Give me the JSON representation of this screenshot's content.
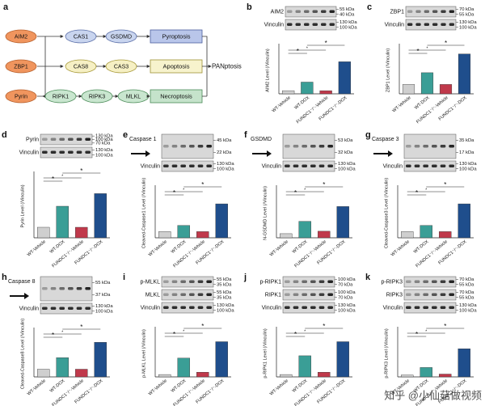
{
  "diagram": {
    "letter": "a",
    "sources": [
      "AIM2",
      "ZBP1",
      "Pyrin"
    ],
    "row1": [
      "CAS1",
      "GSDMD"
    ],
    "row2": [
      "CAS8",
      "CAS3"
    ],
    "row3": [
      "RIPK1",
      "RIPK3",
      "MLKL"
    ],
    "outcomes": [
      "Pyroptosis",
      "Apoptosis",
      "Necroptosis"
    ],
    "result": "PANptosis"
  },
  "groups": {
    "categories": [
      "WT-Vehicle",
      "WT-DOX",
      "FUNDC1⁻/⁻-Vehicle",
      "FUNDC1⁻/⁻-DOX"
    ],
    "colors": [
      "#cfcfcf",
      "#3a9e96",
      "#c0394b",
      "#1f4e8c"
    ]
  },
  "panels": [
    {
      "letter": "b",
      "blots": [
        {
          "label": "AIM2",
          "kda": [
            "55 kDa",
            "40 kDa"
          ]
        },
        {
          "label": "Vinculin",
          "kda": [
            "130 kDa",
            "100 kDa"
          ]
        }
      ],
      "chart": {
        "type": "bar",
        "ylabel": "AIM2 Level (/Vinculin)",
        "values": [
          0.08,
          0.3,
          0.08,
          0.82
        ],
        "ylim": [
          0,
          1.2
        ],
        "sig": [
          "*",
          "*",
          "*"
        ]
      }
    },
    {
      "letter": "c",
      "blots": [
        {
          "label": "ZBP1",
          "kda": [
            "70 kDa",
            "55 kDa"
          ]
        },
        {
          "label": "Vinculin",
          "kda": [
            "130 kDa",
            "100 kDa"
          ]
        }
      ],
      "chart": {
        "type": "bar",
        "ylabel": "ZBP1 Level (/Vinculin)",
        "values": [
          0.2,
          0.45,
          0.2,
          0.85
        ],
        "ylim": [
          0,
          1.0
        ],
        "sig": [
          "*",
          "*",
          "*"
        ]
      }
    },
    {
      "letter": "d",
      "blots": [
        {
          "label": "Pyrin",
          "kda": [
            "130 kDa",
            "100 kDa",
            "70 kDa"
          ]
        },
        {
          "label": "Vinculin",
          "kda": [
            "130 kDa",
            "100 kDa"
          ]
        }
      ],
      "chart": {
        "type": "bar",
        "ylabel": "Pyrin Level (/Vinculin)",
        "values": [
          0.25,
          0.75,
          0.25,
          1.05
        ],
        "ylim": [
          0,
          1.5
        ],
        "sig": [
          "*",
          "*",
          "*"
        ]
      }
    },
    {
      "letter": "e",
      "blots": [
        {
          "label": "Caspase 1",
          "kda": [
            "45 kDa",
            "22 kDa"
          ],
          "tall": true
        },
        {
          "label": "Vinculin",
          "kda": [
            "130 kDa",
            "100 kDa"
          ]
        }
      ],
      "chart": {
        "type": "bar",
        "ylabel": "Cleaved-Caspase1 Level (/Vinculin)",
        "values": [
          0.1,
          0.2,
          0.1,
          0.55
        ],
        "ylim": [
          0,
          0.8
        ],
        "sig": [
          "*",
          "*",
          "*"
        ]
      }
    },
    {
      "letter": "f",
      "blots": [
        {
          "label": "GSDMD",
          "kda": [
            "53 kDa",
            "32 kDa"
          ],
          "tall": true
        },
        {
          "label": "Vinculin",
          "kda": [
            "130 kDa",
            "100 kDa"
          ]
        }
      ],
      "chart": {
        "type": "bar",
        "ylabel": "N-GSDMD Level (/Vinculin)",
        "values": [
          0.05,
          0.2,
          0.08,
          0.38
        ],
        "ylim": [
          0,
          0.6
        ],
        "sig": [
          "*",
          "*",
          "*"
        ]
      }
    },
    {
      "letter": "g",
      "blots": [
        {
          "label": "Caspase 3",
          "kda": [
            "35 kDa",
            "17 kDa"
          ],
          "tall": true
        },
        {
          "label": "Vinculin",
          "kda": [
            "130 kDa",
            "100 kDa"
          ]
        }
      ],
      "chart": {
        "type": "bar",
        "ylabel": "Cleaved-Caspase3 Level (/Vinculin)",
        "values": [
          0.1,
          0.2,
          0.1,
          0.55
        ],
        "ylim": [
          0,
          0.8
        ],
        "sig": [
          "*",
          "*",
          "*"
        ]
      }
    },
    {
      "letter": "h",
      "blots": [
        {
          "label": "Caspase 8",
          "kda": [
            "55 kDa",
            "37 kDa"
          ],
          "tall": true
        },
        {
          "label": "Vinculin",
          "kda": [
            "130 kDa",
            "100 kDa"
          ]
        }
      ],
      "chart": {
        "type": "bar",
        "ylabel": "Cleaved-Caspase8 Level (/Vinculin)",
        "values": [
          0.1,
          0.25,
          0.1,
          0.45
        ],
        "ylim": [
          0,
          0.6
        ],
        "sig": [
          "*",
          "*",
          "*"
        ]
      }
    },
    {
      "letter": "i",
      "blots": [
        {
          "label": "p-MLKL",
          "kda": [
            "55 kDa",
            "35 kDa"
          ]
        },
        {
          "label": "MLKL",
          "kda": [
            "55 kDa",
            "35 kDa"
          ]
        },
        {
          "label": "Vinculin",
          "kda": [
            "130 kDa",
            "100 kDa"
          ]
        }
      ],
      "chart": {
        "type": "bar",
        "ylabel": "p-MLKL Level (/Vinculin)",
        "values": [
          0.05,
          0.4,
          0.1,
          0.75
        ],
        "ylim": [
          0,
          1.0
        ],
        "sig": [
          "*",
          "*",
          "*"
        ]
      }
    },
    {
      "letter": "j",
      "blots": [
        {
          "label": "p-RIPK1",
          "kda": [
            "100 kDa",
            "70 kDa"
          ]
        },
        {
          "label": "RIPK1",
          "kda": [
            "100 kDa",
            "70 kDa"
          ]
        },
        {
          "label": "Vinculin",
          "kda": [
            "130 kDa",
            "100 kDa"
          ]
        }
      ],
      "chart": {
        "type": "bar",
        "ylabel": "p-RIPK1 Level (/Vinculin)",
        "values": [
          0.05,
          0.45,
          0.1,
          0.75
        ],
        "ylim": [
          0,
          1.0
        ],
        "sig": [
          "*",
          "*",
          "*"
        ]
      }
    },
    {
      "letter": "k",
      "blots": [
        {
          "label": "p-RIPK3",
          "kda": [
            "70 kDa",
            "55 kDa"
          ]
        },
        {
          "label": "RIPK3",
          "kda": [
            "70 kDa",
            "55 kDa"
          ]
        },
        {
          "label": "Vinculin",
          "kda": [
            "130 kDa",
            "100 kDa"
          ]
        }
      ],
      "chart": {
        "type": "bar",
        "ylabel": "p-RIPK3 Level (/Vinculin)",
        "values": [
          0.02,
          0.1,
          0.03,
          0.3
        ],
        "ylim": [
          0,
          0.5
        ],
        "sig": [
          "*",
          "*",
          "*"
        ]
      }
    }
  ],
  "watermark": "知乎 @小仙菇做视频"
}
